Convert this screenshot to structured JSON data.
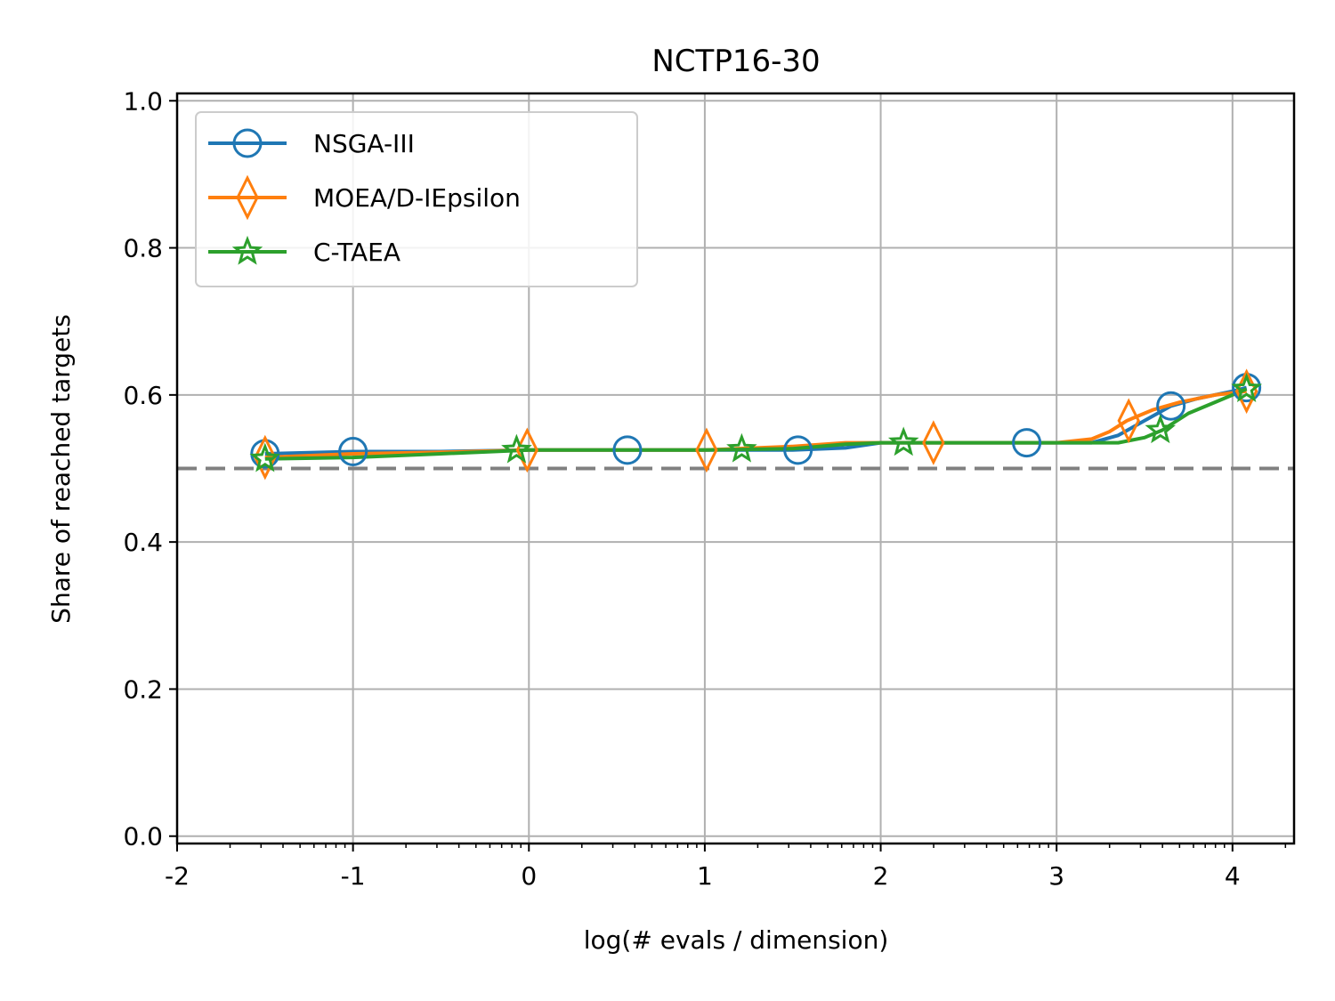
{
  "chart_data": {
    "type": "line",
    "title": "NCTP16-30",
    "xlabel": "log(# evals / dimension)",
    "ylabel": "Share of reached targets",
    "xlim": [
      -2,
      4.35
    ],
    "ylim": [
      -0.01,
      1.01
    ],
    "xticks": [
      -2,
      -1,
      0,
      1,
      2,
      3,
      4
    ],
    "xtick_labels": [
      "-2",
      "-1",
      "0",
      "1",
      "2",
      "3",
      "4"
    ],
    "yticks": [
      0.0,
      0.2,
      0.4,
      0.6,
      0.8,
      1.0
    ],
    "ytick_labels": [
      "0.0",
      "0.2",
      "0.4",
      "0.6",
      "0.8",
      "1.0"
    ],
    "x_minor_ticks_log": true,
    "grid": true,
    "legend_position": "top-left",
    "reference_line": {
      "y": 0.5,
      "style": "dashed",
      "color": "#808080"
    },
    "series": [
      {
        "name": "NSGA-III",
        "color": "#1f77b4",
        "marker": "circle",
        "x": [
          -1.5,
          -1.0,
          -0.5,
          0.0,
          0.5,
          1.0,
          1.5,
          1.8,
          2.0,
          2.5,
          3.0,
          3.2,
          3.35,
          3.5,
          3.65,
          3.8,
          4.0,
          4.08
        ],
        "y": [
          0.52,
          0.523,
          0.523,
          0.525,
          0.525,
          0.525,
          0.525,
          0.528,
          0.535,
          0.535,
          0.535,
          0.535,
          0.545,
          0.565,
          0.585,
          0.595,
          0.605,
          0.61
        ],
        "marker_x": [
          -1.5,
          -1.0,
          0.56,
          1.53,
          2.83,
          3.65,
          4.08
        ],
        "marker_y": [
          0.52,
          0.523,
          0.525,
          0.525,
          0.535,
          0.585,
          0.61
        ]
      },
      {
        "name": "MOEA/D-IEpsilon",
        "color": "#ff7f0e",
        "marker": "diamond",
        "x": [
          -1.5,
          -1.0,
          -0.5,
          0.0,
          0.5,
          1.0,
          1.5,
          1.8,
          2.0,
          2.5,
          3.0,
          3.2,
          3.3,
          3.4,
          3.55,
          3.7,
          3.9,
          4.08
        ],
        "y": [
          0.515,
          0.52,
          0.522,
          0.525,
          0.525,
          0.525,
          0.53,
          0.535,
          0.535,
          0.535,
          0.535,
          0.54,
          0.55,
          0.565,
          0.58,
          0.59,
          0.6,
          0.605
        ],
        "marker_x": [
          -1.5,
          -0.01,
          1.01,
          2.3,
          3.41,
          4.08
        ],
        "marker_y": [
          0.515,
          0.525,
          0.525,
          0.535,
          0.565,
          0.605
        ]
      },
      {
        "name": "C-TAEA",
        "color": "#2ca02c",
        "marker": "star",
        "x": [
          -1.5,
          -1.0,
          -0.5,
          0.0,
          0.5,
          1.0,
          1.5,
          1.8,
          2.0,
          2.5,
          3.0,
          3.2,
          3.35,
          3.5,
          3.6,
          3.75,
          3.9,
          4.08
        ],
        "y": [
          0.513,
          0.515,
          0.52,
          0.525,
          0.525,
          0.525,
          0.527,
          0.533,
          0.535,
          0.535,
          0.535,
          0.535,
          0.535,
          0.542,
          0.552,
          0.575,
          0.59,
          0.608
        ],
        "marker_x": [
          -1.5,
          -0.07,
          1.21,
          2.13,
          3.59,
          4.08
        ],
        "marker_y": [
          0.513,
          0.525,
          0.526,
          0.535,
          0.552,
          0.608
        ]
      }
    ]
  }
}
